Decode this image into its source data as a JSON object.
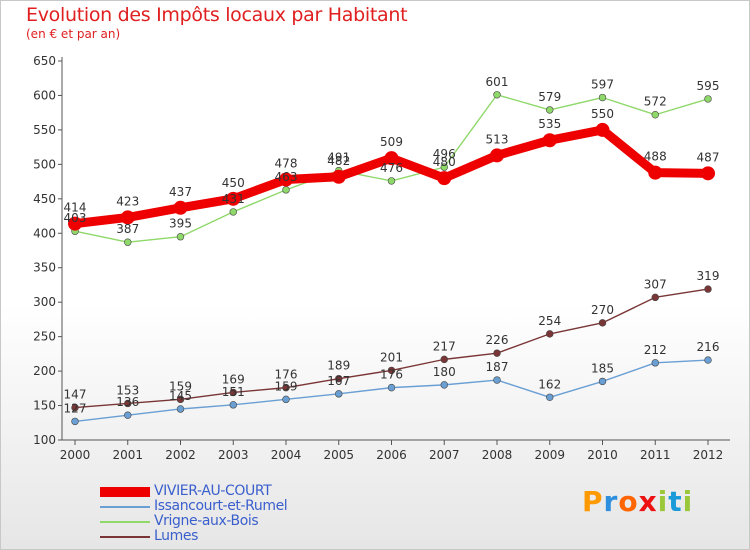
{
  "colors": {
    "vivier": "#ee0000",
    "issancourt": "#6a9fd4",
    "vrigne": "#8fd86a",
    "lumes": "#7a3636",
    "axis": "#555555",
    "grid": "#d8d8d8"
  },
  "logo": {
    "text": "Proxiti",
    "letter_colors": [
      "#ff9900",
      "#2f8fdf",
      "#ff6600",
      "#ee1111",
      "#9bc73a",
      "#1a9ad8",
      "#9bc73a"
    ]
  },
  "chart_data": {
    "type": "line",
    "title": "Evolution des Impôts locaux par Habitant",
    "subtitle": "(en € et par an)",
    "x": [
      2000,
      2001,
      2002,
      2003,
      2004,
      2005,
      2006,
      2007,
      2008,
      2009,
      2010,
      2011,
      2012
    ],
    "ylim": [
      100,
      650
    ],
    "yticks": [
      100,
      150,
      200,
      250,
      300,
      350,
      400,
      450,
      500,
      550,
      600,
      650
    ],
    "grid": false,
    "legend_position": "bottom-left",
    "series": [
      {
        "key": "vivier",
        "name": "VIVIER-AU-COURT",
        "values": [
          414,
          423,
          437,
          450,
          478,
          482,
          509,
          480,
          513,
          535,
          550,
          488,
          487
        ]
      },
      {
        "key": "issancourt",
        "name": "Issancourt-et-Rumel",
        "values": [
          127,
          136,
          145,
          151,
          159,
          167,
          176,
          180,
          187,
          162,
          185,
          212,
          216
        ]
      },
      {
        "key": "vrigne",
        "name": "Vrigne-aux-Bois",
        "values": [
          403,
          387,
          395,
          431,
          463,
          491,
          476,
          496,
          601,
          579,
          597,
          572,
          595
        ]
      },
      {
        "key": "lumes",
        "name": "Lumes",
        "values": [
          147,
          153,
          159,
          169,
          176,
          189,
          201,
          217,
          226,
          254,
          270,
          307,
          319
        ]
      }
    ]
  }
}
